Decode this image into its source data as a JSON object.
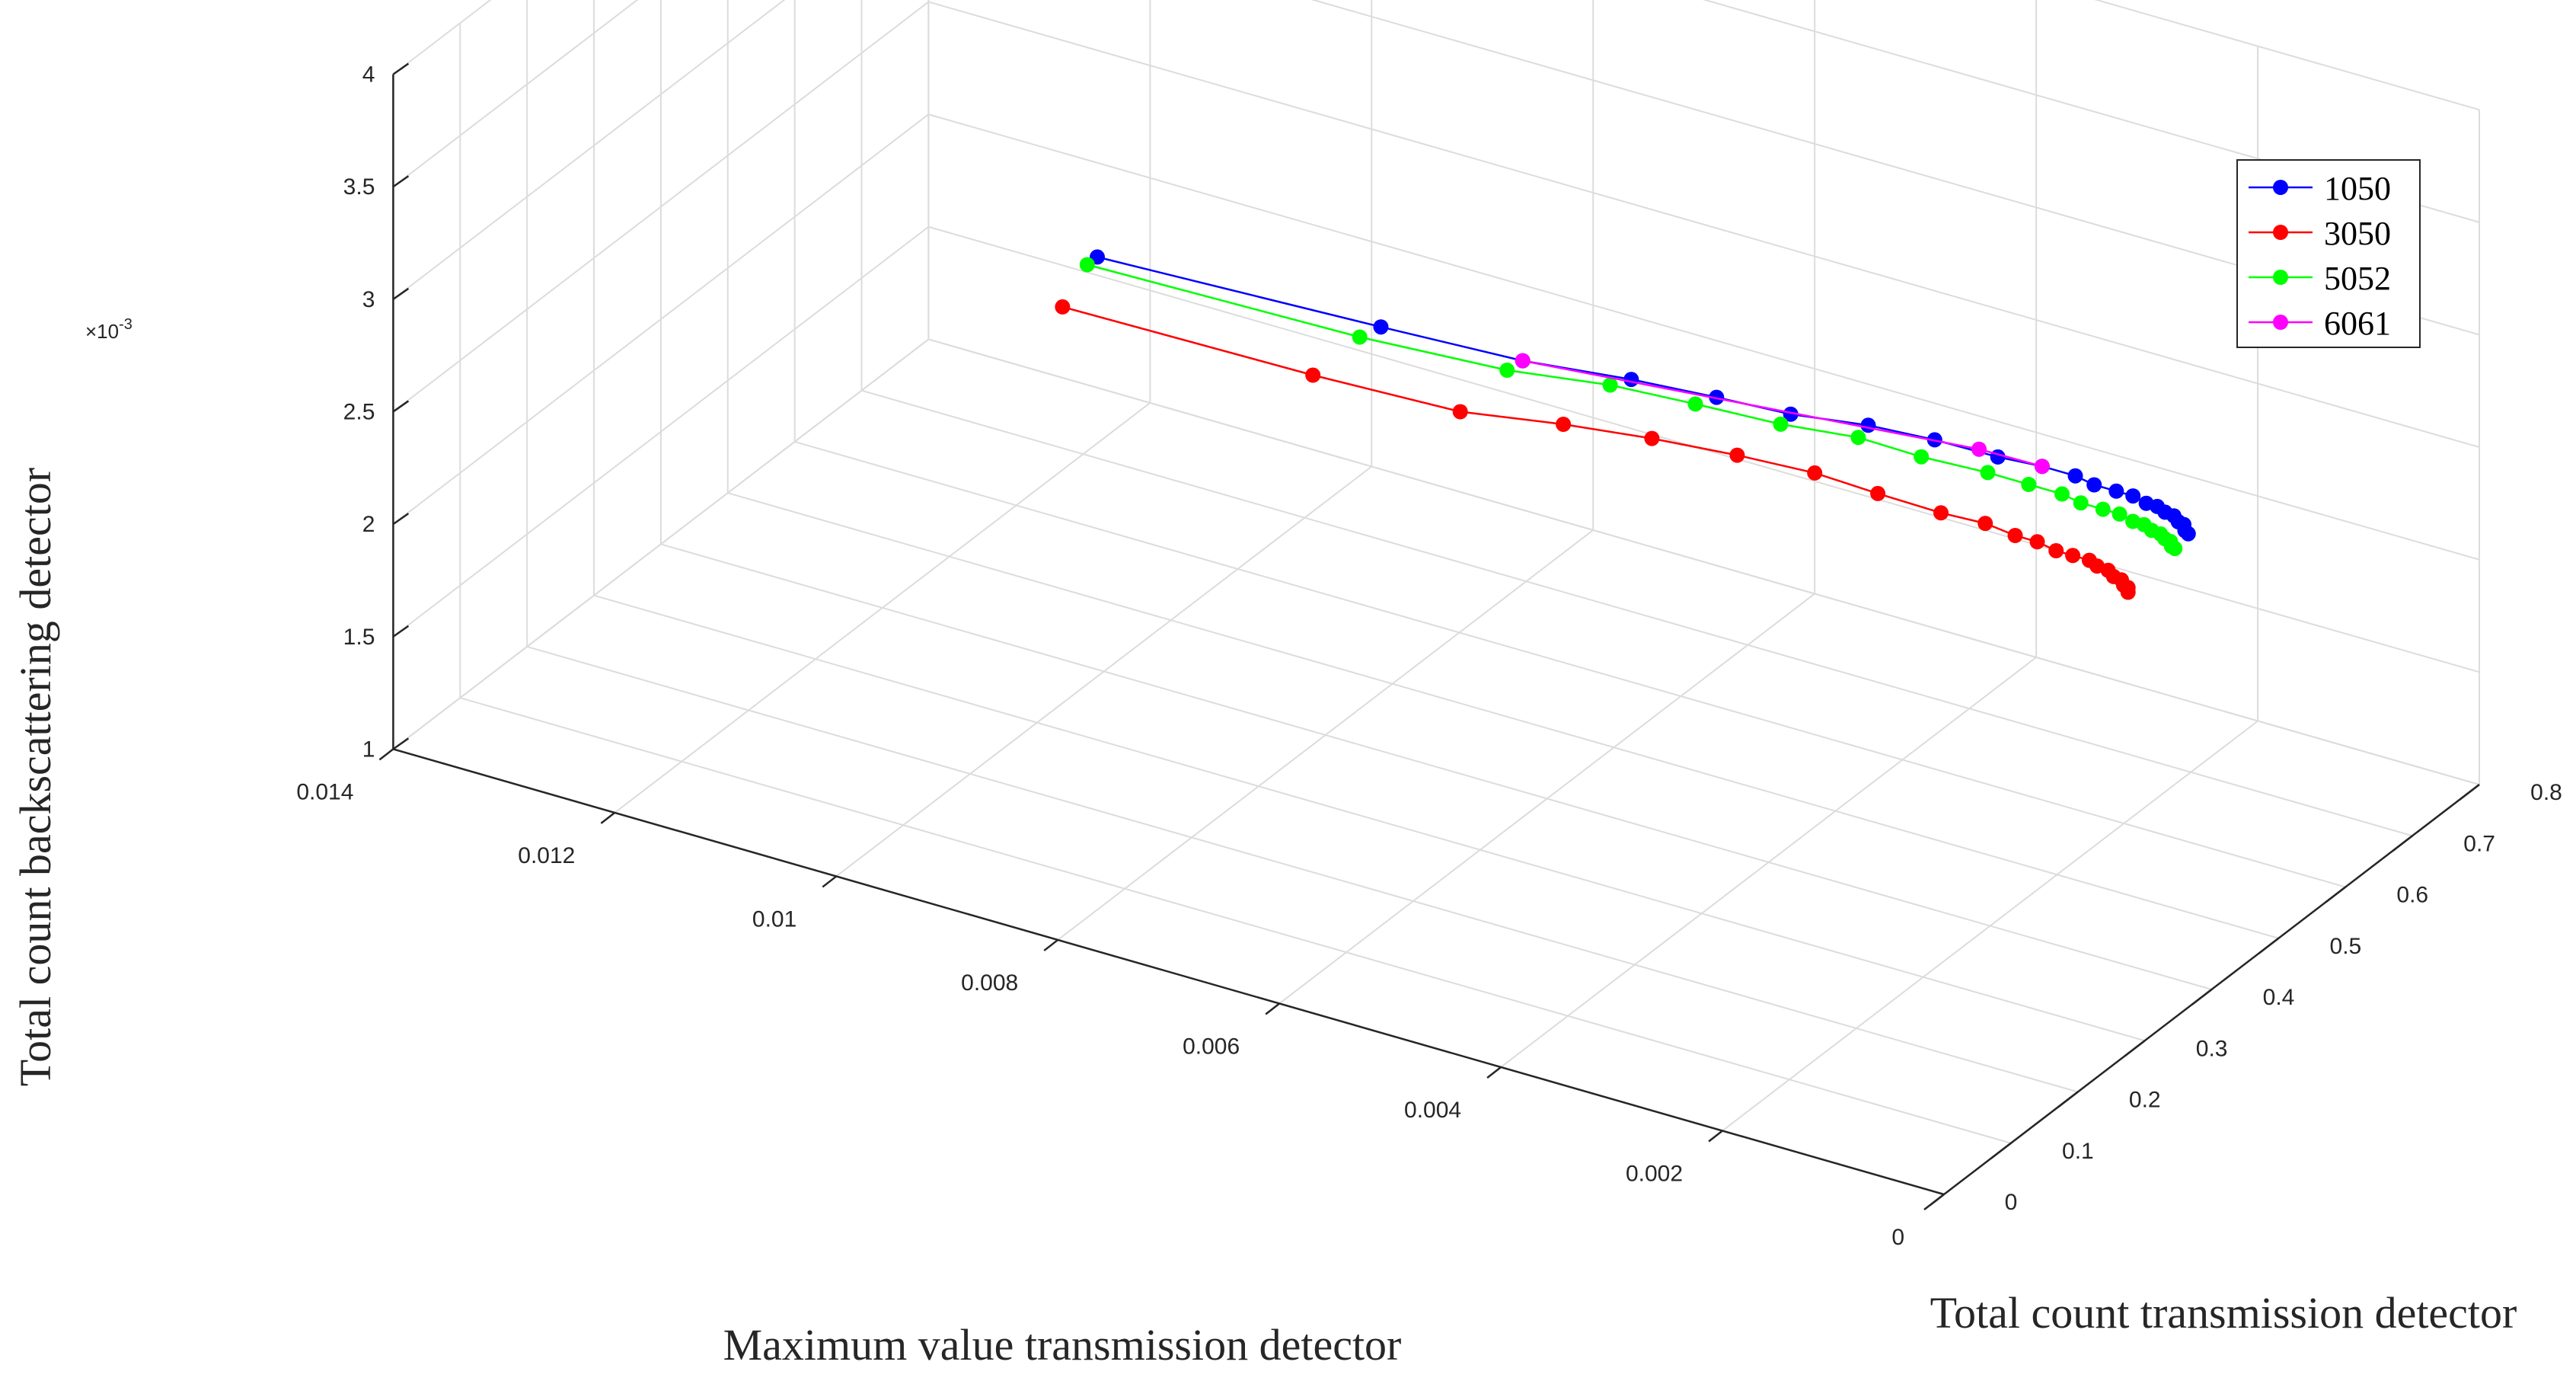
{
  "chart_data": {
    "type": "line3d",
    "title": "",
    "xlabel": "Maximum value transmission detector",
    "ylabel": "Total count transmission detector",
    "zlabel": "Total count backscattering  detector",
    "zscale_label": "×10",
    "zscale_exp": "-3",
    "xlim": [
      0,
      0.014
    ],
    "ylim": [
      0,
      0.8
    ],
    "zlim": [
      1,
      4
    ],
    "x_ticks": [
      "0.014",
      "0.012",
      "0.01",
      "0.008",
      "0.006",
      "0.004",
      "0.002",
      "0"
    ],
    "y_ticks": [
      "0",
      "0.1",
      "0.2",
      "0.3",
      "0.4",
      "0.5",
      "0.6",
      "0.7",
      "0.8"
    ],
    "z_ticks": [
      "1",
      "1.5",
      "2",
      "2.5",
      "3",
      "3.5",
      "4"
    ],
    "legend_position": "top-right",
    "series": [
      {
        "name": "1050",
        "color": "#0000ff",
        "points": [
          [
            0.01,
            0.39,
            2.865
          ],
          [
            0.0075,
            0.4,
            2.885
          ],
          [
            0.00625,
            0.405,
            2.9
          ],
          [
            0.0053,
            0.41,
            2.94
          ],
          [
            0.0045,
            0.405,
            2.985
          ],
          [
            0.0038,
            0.4,
            3.02
          ],
          [
            0.0031,
            0.4,
            3.07
          ],
          [
            0.0025,
            0.4,
            3.09
          ],
          [
            0.0019,
            0.395,
            3.11
          ],
          [
            0.0015,
            0.395,
            3.125
          ],
          [
            0.0012,
            0.395,
            3.125
          ],
          [
            0.001,
            0.39,
            3.125
          ],
          [
            0.0008,
            0.39,
            3.125
          ],
          [
            0.00065,
            0.39,
            3.125
          ],
          [
            0.0005,
            0.385,
            3.125
          ],
          [
            0.0004,
            0.385,
            3.125
          ],
          [
            0.0003,
            0.38,
            3.125
          ],
          [
            0.00022,
            0.38,
            3.12
          ],
          [
            0.00015,
            0.375,
            3.115
          ],
          [
            0.0001,
            0.375,
            3.11
          ],
          [
            6e-05,
            0.37,
            3.1
          ],
          [
            3e-05,
            0.37,
            3.09
          ]
        ]
      },
      {
        "name": "3050",
        "color": "#ff0000",
        "points": [
          [
            0.0098,
            0.305,
            2.865
          ],
          [
            0.0076,
            0.315,
            2.85
          ],
          [
            0.0063,
            0.32,
            2.86
          ],
          [
            0.0054,
            0.325,
            2.92
          ],
          [
            0.0046,
            0.325,
            2.97
          ],
          [
            0.0038,
            0.32,
            3.02
          ],
          [
            0.0031,
            0.32,
            3.04
          ],
          [
            0.0025,
            0.315,
            3.045
          ],
          [
            0.0019,
            0.31,
            3.055
          ],
          [
            0.0015,
            0.31,
            3.065
          ],
          [
            0.0012,
            0.305,
            3.065
          ],
          [
            0.001,
            0.305,
            3.065
          ],
          [
            0.0008,
            0.3,
            3.065
          ],
          [
            0.00065,
            0.3,
            3.065
          ],
          [
            0.0005,
            0.3,
            3.065
          ],
          [
            0.0004,
            0.295,
            3.065
          ],
          [
            0.0003,
            0.295,
            3.06
          ],
          [
            0.00022,
            0.29,
            3.055
          ],
          [
            0.00015,
            0.29,
            3.05
          ],
          [
            0.0001,
            0.285,
            3.045
          ],
          [
            6e-05,
            0.285,
            3.04
          ],
          [
            3e-05,
            0.28,
            3.035
          ]
        ]
      },
      {
        "name": "5052",
        "color": "#00ff00",
        "points": [
          [
            0.01,
            0.375,
            2.865
          ],
          [
            0.0076,
            0.385,
            2.86
          ],
          [
            0.0063,
            0.39,
            2.885
          ],
          [
            0.0054,
            0.395,
            2.935
          ],
          [
            0.0046,
            0.39,
            2.975
          ],
          [
            0.0038,
            0.385,
            3.01
          ],
          [
            0.0031,
            0.385,
            3.05
          ],
          [
            0.0025,
            0.38,
            3.06
          ],
          [
            0.0019,
            0.38,
            3.075
          ],
          [
            0.0015,
            0.375,
            3.09
          ],
          [
            0.0012,
            0.375,
            3.09
          ],
          [
            0.001,
            0.37,
            3.09
          ],
          [
            0.0008,
            0.37,
            3.09
          ],
          [
            0.00065,
            0.37,
            3.09
          ],
          [
            0.0005,
            0.365,
            3.09
          ],
          [
            0.0004,
            0.365,
            3.09
          ],
          [
            0.0003,
            0.36,
            3.09
          ],
          [
            0.00022,
            0.36,
            3.085
          ],
          [
            0.00015,
            0.355,
            3.085
          ],
          [
            0.0001,
            0.355,
            3.08
          ],
          [
            6e-05,
            0.35,
            3.075
          ],
          [
            3e-05,
            0.35,
            3.07
          ]
        ]
      },
      {
        "name": "6061",
        "color": "#ff00ff",
        "points": [
          [
            0.00625,
            0.405,
            2.9
          ],
          [
            0.0021,
            0.4,
            3.105
          ],
          [
            0.0015,
            0.395,
            3.125
          ]
        ]
      }
    ]
  }
}
